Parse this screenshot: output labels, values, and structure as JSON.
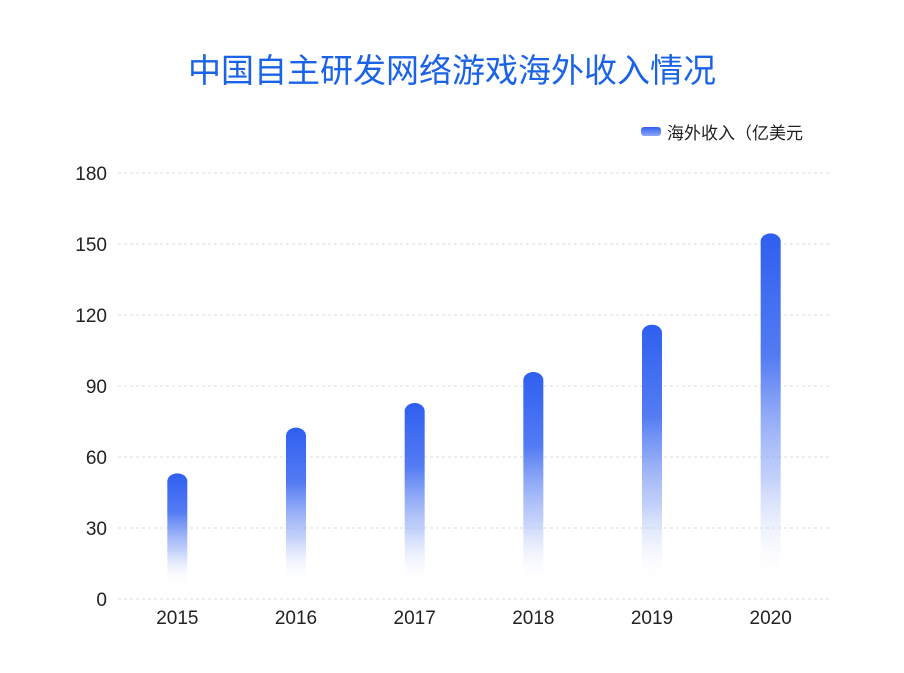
{
  "chart_data": {
    "type": "bar",
    "title": "中国自主研发网络游戏海外收入情况",
    "categories": [
      "2015",
      "2016",
      "2017",
      "2018",
      "2019",
      "2020"
    ],
    "series": [
      {
        "name": "海外收入（亿美元",
        "values": [
          53.1,
          72.4,
          82.8,
          95.9,
          115.9,
          154.5
        ]
      }
    ],
    "ylim": [
      0,
      180
    ],
    "yticks": [
      0,
      30,
      60,
      90,
      120,
      150,
      180
    ],
    "grid": true,
    "legend_position": "top-right",
    "colors": {
      "bar_top": "#2f5ff0",
      "bar_bottom": "#ffffff",
      "title": "#1a63e6",
      "grid": "#dcdcdc"
    }
  }
}
